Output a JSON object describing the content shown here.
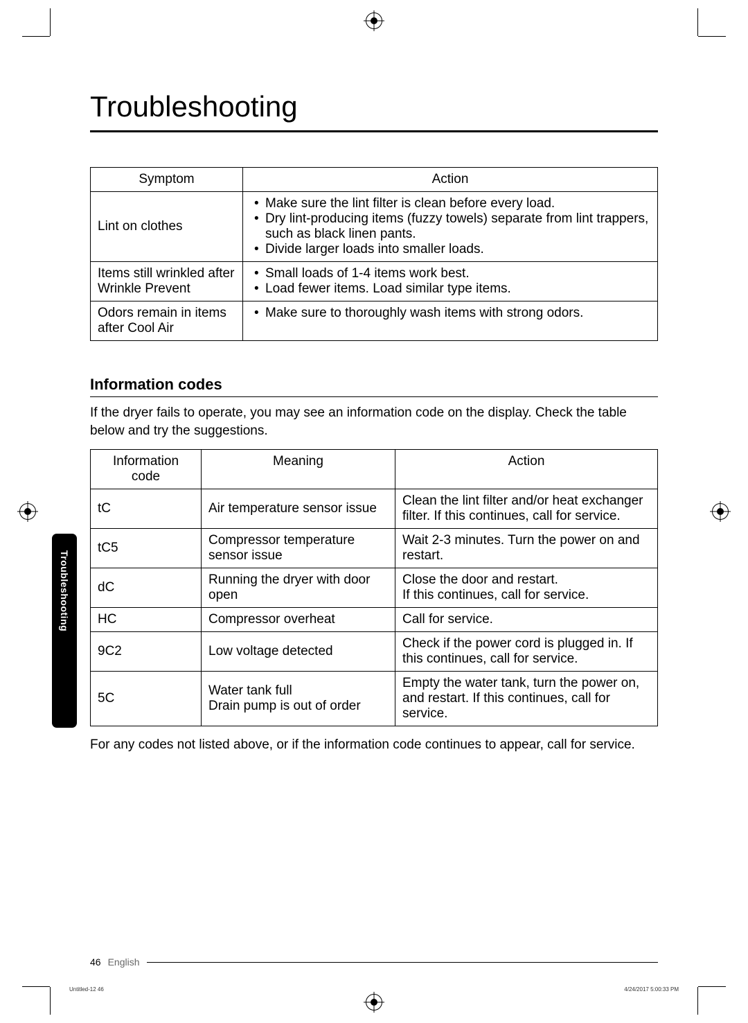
{
  "title": "Troubleshooting",
  "symptom_table": {
    "headers": {
      "symptom": "Symptom",
      "action": "Action"
    },
    "rows": [
      {
        "symptom": "Lint on clothes",
        "actions": [
          "Make sure the lint filter is clean before every load.",
          "Dry lint-producing items (fuzzy towels) separate from lint trappers, such as black linen pants.",
          "Divide larger loads into smaller loads."
        ]
      },
      {
        "symptom": "Items still wrinkled after Wrinkle Prevent",
        "actions": [
          "Small loads of 1-4 items work best.",
          "Load fewer items. Load similar type items."
        ]
      },
      {
        "symptom": "Odors remain in items after Cool Air",
        "actions": [
          "Make sure to thoroughly wash items with strong odors."
        ]
      }
    ]
  },
  "info_codes": {
    "heading": "Information codes",
    "intro": "If the dryer fails to operate, you may see an information code on the display. Check the table below and try the suggestions.",
    "headers": {
      "code": "Information code",
      "meaning": "Meaning",
      "action": "Action"
    },
    "rows": [
      {
        "code": "tC",
        "meaning": "Air temperature sensor issue",
        "action": "Clean the lint filter and/or heat exchanger filter. If this continues, call for service."
      },
      {
        "code": "tC5",
        "meaning": "Compressor temperature sensor issue",
        "action": "Wait 2-3 minutes. Turn the power on and restart."
      },
      {
        "code": "dC",
        "meaning": "Running the dryer with door open",
        "action": "Close the door and restart.\nIf this continues, call for service."
      },
      {
        "code": "HC",
        "meaning": "Compressor overheat",
        "action": "Call for service."
      },
      {
        "code": "9C2",
        "meaning": "Low voltage detected",
        "action": "Check if the power cord is plugged in. If this continues, call for service."
      },
      {
        "code": "5C",
        "meaning": "Water tank full\nDrain pump is out of order",
        "action": "Empty the water tank, turn the power on, and restart. If this continues, call for service."
      }
    ],
    "outro": "For any codes not listed above, or if the information code continues to appear, call for service."
  },
  "side_tab": "Troubleshooting",
  "footer": {
    "page": "46",
    "language": "English"
  },
  "micro": {
    "left": "Untitled-12   46",
    "right": "4/24/2017   5:00:33 PM"
  }
}
